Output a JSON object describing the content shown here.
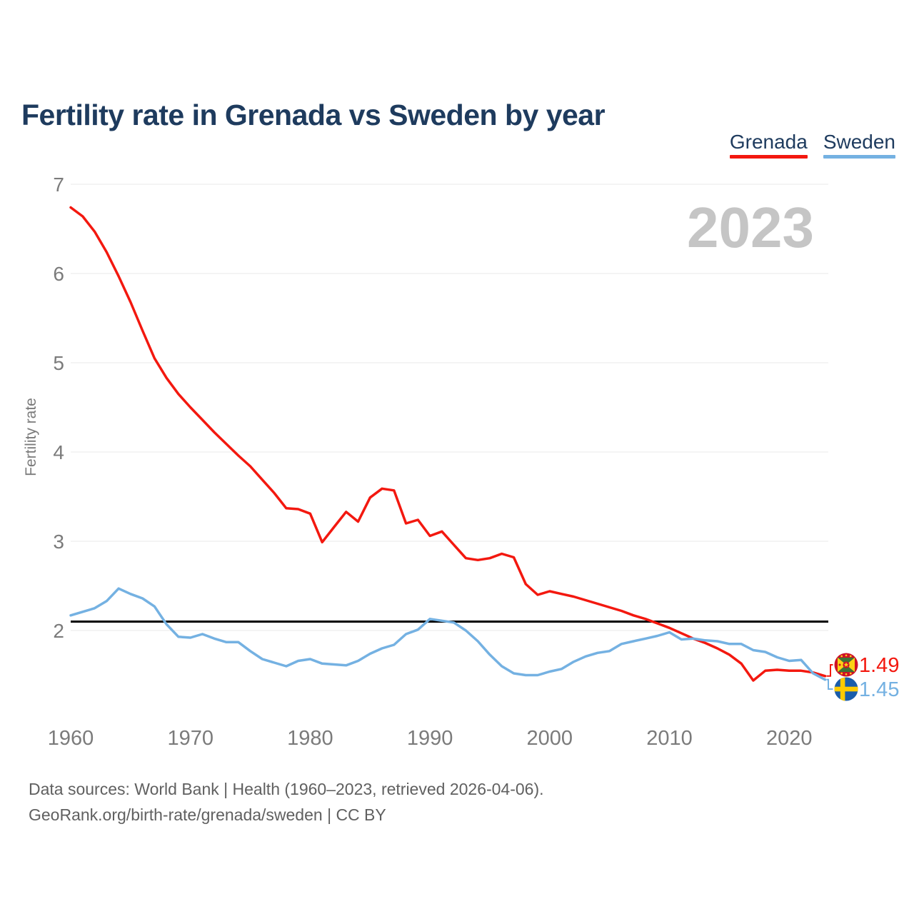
{
  "title": "Fertility rate in Grenada vs Sweden by year",
  "watermark": "2023",
  "y_axis_title": "Fertility rate",
  "legend": [
    {
      "label": "Grenada",
      "color": "#f3180f"
    },
    {
      "label": "Sweden",
      "color": "#74b1e2"
    }
  ],
  "footer": {
    "line1": "Data sources: World Bank | Health (1960–2023, retrieved 2026-04-06).",
    "line2": "GeoRank.org/birth-rate/grenada/sweden | CC BY"
  },
  "chart_data": {
    "type": "line",
    "title": "Fertility rate in Grenada vs Sweden by year",
    "xlabel": "",
    "ylabel": "Fertility rate",
    "xlim": [
      1960,
      2023
    ],
    "ylim": [
      1.3,
      7.1
    ],
    "grid": "horizontal",
    "legend_position": "top-right",
    "xticks": [
      1960,
      1970,
      1980,
      1990,
      2000,
      2010,
      2020
    ],
    "yticks": [
      2,
      3,
      4,
      5,
      6,
      7
    ],
    "reference_line": {
      "value": 2.1,
      "color": "#000000"
    },
    "x": [
      1960,
      1961,
      1962,
      1963,
      1964,
      1965,
      1966,
      1967,
      1968,
      1969,
      1970,
      1971,
      1972,
      1973,
      1974,
      1975,
      1976,
      1977,
      1978,
      1979,
      1980,
      1981,
      1982,
      1983,
      1984,
      1985,
      1986,
      1987,
      1988,
      1989,
      1990,
      1991,
      1992,
      1993,
      1994,
      1995,
      1996,
      1997,
      1998,
      1999,
      2000,
      2001,
      2002,
      2003,
      2004,
      2005,
      2006,
      2007,
      2008,
      2009,
      2010,
      2011,
      2012,
      2013,
      2014,
      2015,
      2016,
      2017,
      2018,
      2019,
      2020,
      2021,
      2022,
      2023
    ],
    "series": [
      {
        "name": "Grenada",
        "color": "#f3180f",
        "values": [
          6.74,
          6.64,
          6.47,
          6.24,
          5.97,
          5.68,
          5.36,
          5.05,
          4.83,
          4.65,
          4.5,
          4.36,
          4.22,
          4.09,
          3.96,
          3.84,
          3.69,
          3.54,
          3.37,
          3.36,
          3.31,
          2.99,
          3.16,
          3.33,
          3.22,
          3.49,
          3.59,
          3.57,
          3.2,
          3.24,
          3.06,
          3.11,
          2.96,
          2.81,
          2.79,
          2.81,
          2.86,
          2.82,
          2.52,
          2.4,
          2.44,
          2.41,
          2.38,
          2.34,
          2.3,
          2.26,
          2.22,
          2.17,
          2.13,
          2.08,
          2.03,
          1.97,
          1.91,
          1.86,
          1.8,
          1.73,
          1.63,
          1.44,
          1.55,
          1.56,
          1.55,
          1.55,
          1.53,
          1.49
        ]
      },
      {
        "name": "Sweden",
        "color": "#74b1e2",
        "values": [
          2.17,
          2.21,
          2.25,
          2.33,
          2.47,
          2.41,
          2.36,
          2.27,
          2.07,
          1.93,
          1.92,
          1.96,
          1.91,
          1.87,
          1.87,
          1.77,
          1.68,
          1.64,
          1.6,
          1.66,
          1.68,
          1.63,
          1.62,
          1.61,
          1.66,
          1.74,
          1.8,
          1.84,
          1.96,
          2.01,
          2.13,
          2.11,
          2.09,
          2.0,
          1.88,
          1.73,
          1.6,
          1.52,
          1.5,
          1.5,
          1.54,
          1.57,
          1.65,
          1.71,
          1.75,
          1.77,
          1.85,
          1.88,
          1.91,
          1.94,
          1.98,
          1.9,
          1.91,
          1.89,
          1.88,
          1.85,
          1.85,
          1.78,
          1.76,
          1.7,
          1.66,
          1.67,
          1.52,
          1.45
        ]
      }
    ],
    "end_labels": {
      "grenada": "1.49",
      "sweden": "1.45"
    }
  }
}
